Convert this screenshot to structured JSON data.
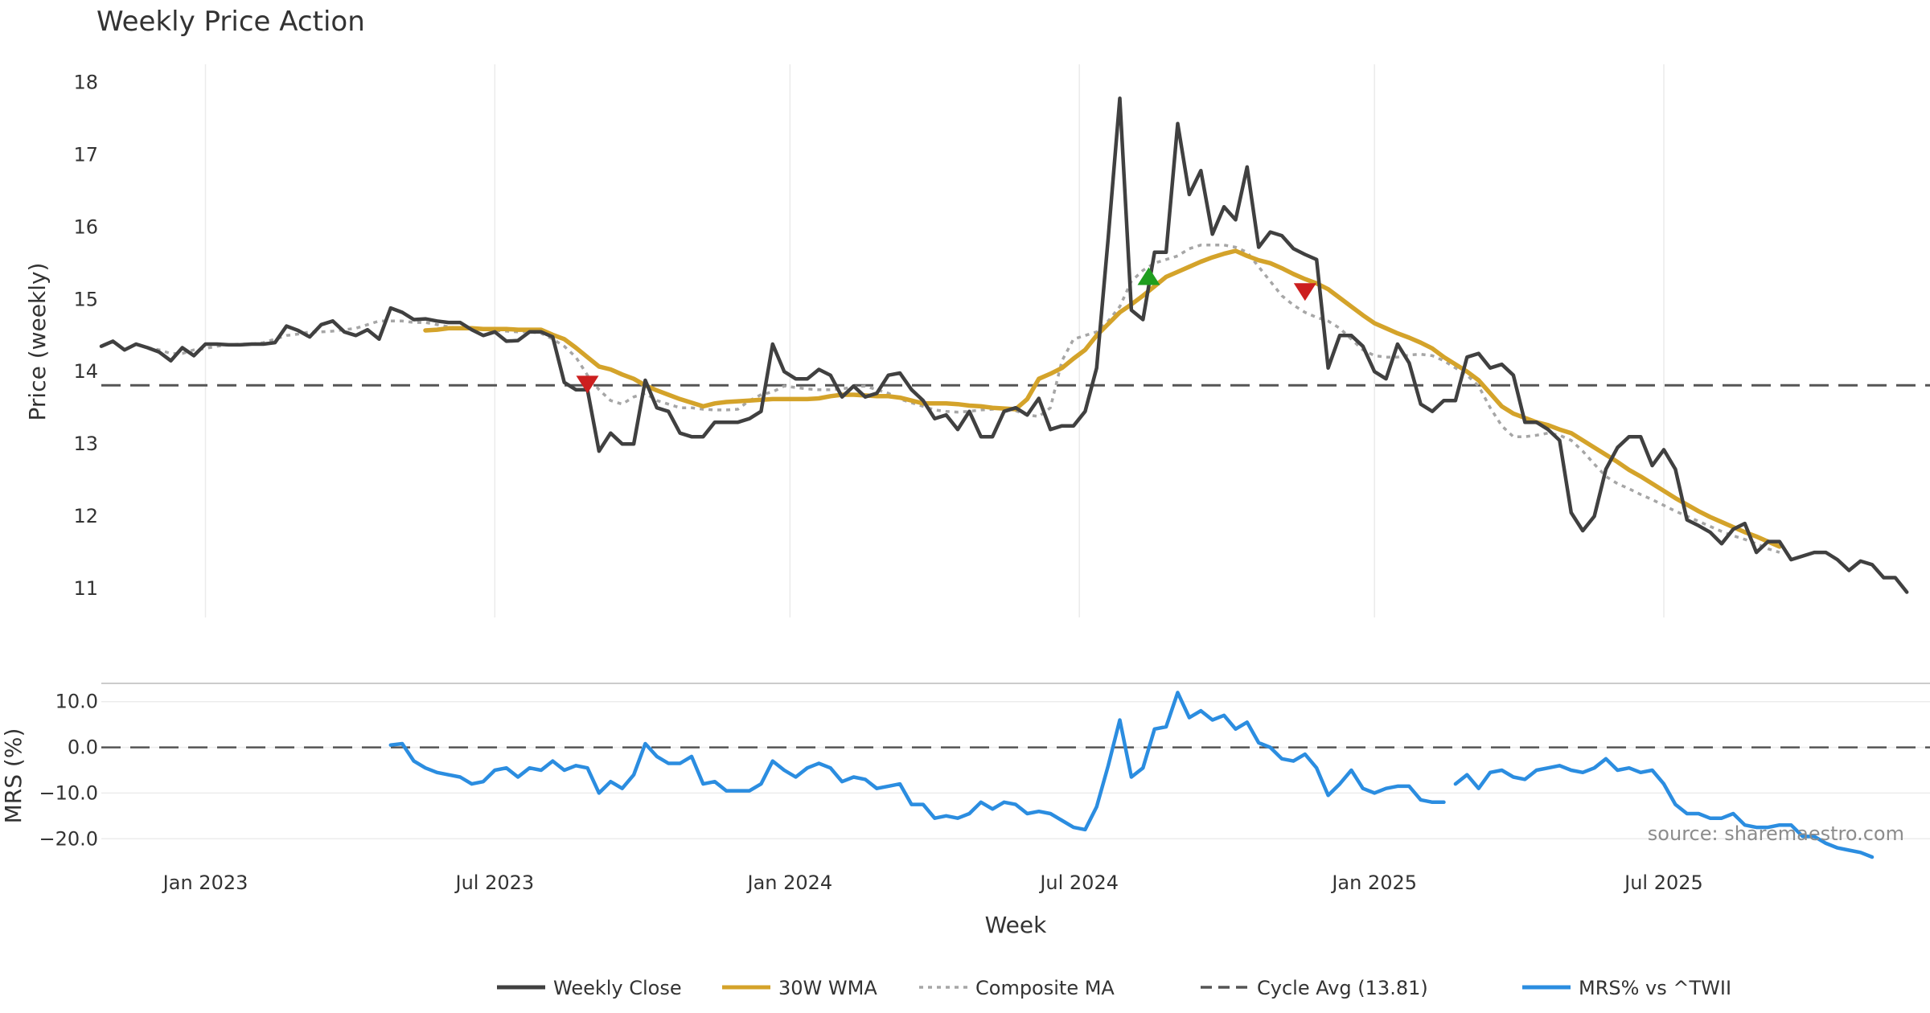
{
  "chart_data": [
    {
      "type": "line",
      "title": "Weekly Price Action",
      "ylabel": "Price (weekly)",
      "xlabel": "Week",
      "ylim": [
        10.6,
        18.25
      ],
      "xlim": [
        0,
        158
      ],
      "yticks": [
        11,
        12,
        13,
        14,
        15,
        16,
        17,
        18
      ],
      "yticklabels": [
        "11",
        "12",
        "13",
        "14",
        "15",
        "16",
        "17",
        "18"
      ],
      "grid": true,
      "x_dates": [
        "Jan 2023",
        "Jul 2023",
        "Jan 2024",
        "Jul 2024",
        "Jan 2025",
        "Jul 2025"
      ],
      "x_date_positions": [
        9,
        34,
        59.5,
        84.5,
        110,
        135
      ],
      "reference_line": {
        "label": "Cycle Avg (13.81)",
        "value": 13.81
      },
      "series": [
        {
          "name": "Weekly Close",
          "color": "#404040",
          "style": "solid",
          "x_start": 0,
          "values": [
            14.35,
            14.42,
            14.3,
            14.38,
            14.33,
            14.27,
            14.15,
            14.33,
            14.22,
            14.38,
            14.38,
            14.37,
            14.37,
            14.38,
            14.38,
            14.4,
            14.63,
            14.57,
            14.48,
            14.65,
            14.7,
            14.55,
            14.5,
            14.58,
            14.45,
            14.88,
            14.82,
            14.72,
            14.73,
            14.7,
            14.68,
            14.68,
            14.58,
            14.5,
            14.55,
            14.42,
            14.43,
            14.55,
            14.55,
            14.48,
            13.85,
            13.75,
            13.75,
            12.9,
            13.15,
            13.0,
            13.0,
            13.88,
            13.5,
            13.45,
            13.15,
            13.1,
            13.1,
            13.3,
            13.3,
            13.3,
            13.35,
            13.45,
            14.38,
            14.0,
            13.9,
            13.9,
            14.03,
            13.95,
            13.65,
            13.8,
            13.65,
            13.7,
            13.95,
            13.98,
            13.75,
            13.6,
            13.35,
            13.4,
            13.2,
            13.45,
            13.1,
            13.1,
            13.45,
            13.5,
            13.4,
            13.63,
            13.2,
            13.25,
            13.25,
            13.45,
            14.05,
            15.85,
            17.78,
            14.85,
            14.72,
            15.65,
            15.65,
            17.43,
            16.45,
            16.78,
            15.9,
            16.28,
            16.1,
            16.83,
            15.72,
            15.93,
            15.88,
            15.7,
            15.62,
            15.55,
            14.05,
            14.5,
            14.5,
            14.35,
            14.0,
            13.9,
            14.38,
            14.12,
            13.55,
            13.45,
            13.6,
            13.6,
            14.2,
            14.25,
            14.05,
            14.1,
            13.95,
            13.3,
            13.3,
            13.2,
            13.05,
            12.05,
            11.8,
            12.0,
            12.65,
            12.95,
            13.1,
            13.1,
            12.7,
            12.92,
            12.65,
            11.95,
            11.87,
            11.78,
            11.62,
            11.82,
            11.9,
            11.5,
            11.65,
            11.65,
            11.4,
            11.45,
            11.5,
            11.5,
            11.4,
            11.25,
            11.38,
            11.33,
            11.15,
            11.15,
            10.95
          ]
        },
        {
          "name": "30W WMA",
          "color": "#d4a32a",
          "style": "solid",
          "x_start": 28,
          "values": [
            14.57,
            14.58,
            14.6,
            14.6,
            14.6,
            14.59,
            14.59,
            14.59,
            14.58,
            14.58,
            14.58,
            14.51,
            14.45,
            14.33,
            14.2,
            14.07,
            14.03,
            13.96,
            13.9,
            13.81,
            13.74,
            13.68,
            13.62,
            13.57,
            13.52,
            13.56,
            13.58,
            13.59,
            13.6,
            13.61,
            13.62,
            13.62,
            13.62,
            13.62,
            13.63,
            13.66,
            13.68,
            13.68,
            13.67,
            13.66,
            13.66,
            13.64,
            13.6,
            13.56,
            13.56,
            13.56,
            13.55,
            13.53,
            13.52,
            13.5,
            13.49,
            13.48,
            13.62,
            13.9,
            13.97,
            14.05,
            14.18,
            14.3,
            14.5,
            14.66,
            14.82,
            14.93,
            15.05,
            15.18,
            15.31,
            15.38,
            15.45,
            15.52,
            15.58,
            15.63,
            15.67,
            15.6,
            15.54,
            15.5,
            15.43,
            15.35,
            15.28,
            15.22,
            15.14,
            15.02,
            14.9,
            14.78,
            14.67,
            14.6,
            14.53,
            14.47,
            14.4,
            14.32,
            14.2,
            14.1,
            14.0,
            13.88,
            13.7,
            13.52,
            13.42,
            13.36,
            13.3,
            13.26,
            13.2,
            13.15,
            13.05,
            12.95,
            12.85,
            12.75,
            12.64,
            12.55,
            12.45,
            12.35,
            12.25,
            12.16,
            12.07,
            11.99,
            11.92,
            11.85,
            11.78,
            11.72,
            11.65,
            11.58
          ]
        },
        {
          "name": "Composite MA",
          "color": "#a6a6a6",
          "style": "dotted",
          "x_start": 4,
          "values": [
            14.33,
            14.3,
            14.25,
            14.25,
            14.3,
            14.32,
            14.35,
            14.37,
            14.38,
            14.38,
            14.4,
            14.45,
            14.5,
            14.52,
            14.55,
            14.55,
            14.56,
            14.58,
            14.6,
            14.65,
            14.7,
            14.7,
            14.7,
            14.68,
            14.68,
            14.65,
            14.62,
            14.6,
            14.6,
            14.58,
            14.57,
            14.56,
            14.55,
            14.55,
            14.53,
            14.45,
            14.35,
            14.2,
            13.95,
            13.75,
            13.6,
            13.55,
            13.65,
            13.7,
            13.6,
            13.55,
            13.5,
            13.5,
            13.48,
            13.47,
            13.47,
            13.48,
            13.6,
            13.68,
            13.72,
            13.8,
            13.78,
            13.76,
            13.75,
            13.75,
            13.76,
            13.79,
            13.8,
            13.75,
            13.7,
            13.62,
            13.57,
            13.52,
            13.47,
            13.45,
            13.44,
            13.45,
            13.47,
            13.48,
            13.5,
            13.46,
            13.4,
            13.38,
            13.5,
            14.15,
            14.45,
            14.5,
            14.55,
            14.7,
            14.9,
            15.25,
            15.4,
            15.5,
            15.55,
            15.6,
            15.7,
            15.75,
            15.75,
            15.75,
            15.72,
            15.65,
            15.45,
            15.25,
            15.05,
            14.92,
            14.82,
            14.75,
            14.7,
            14.6,
            14.45,
            14.3,
            14.22,
            14.2,
            14.2,
            14.23,
            14.24,
            14.22,
            14.15,
            14.05,
            13.95,
            13.8,
            13.5,
            13.25,
            13.1,
            13.1,
            13.12,
            13.15,
            13.12,
            13.05,
            12.9,
            12.72,
            12.55,
            12.45,
            12.38,
            12.3,
            12.23,
            12.15,
            12.07,
            12.0,
            11.93,
            11.86,
            11.79,
            11.73,
            11.68,
            11.62,
            11.55,
            11.5
          ]
        }
      ],
      "markers": [
        {
          "type": "sell",
          "x": 42,
          "y": 13.82,
          "color": "#cc1f1f"
        },
        {
          "type": "buy",
          "x": 90.5,
          "y": 15.32,
          "color": "#1f9e1f"
        },
        {
          "type": "sell",
          "x": 104,
          "y": 15.1,
          "color": "#cc1f1f"
        }
      ],
      "source_note": "source: sharemaestro.com"
    },
    {
      "type": "line",
      "ylabel": "MRS (%)",
      "ylim": [
        -24,
        14
      ],
      "xlim": [
        0,
        158
      ],
      "yticks": [
        10,
        0,
        -10,
        -20
      ],
      "yticklabels": [
        "10.0",
        "0.0",
        "−10.0",
        "−20.0"
      ],
      "grid": true,
      "reference_line": {
        "value": 0
      },
      "series": [
        {
          "name": "MRS% vs ^TWII",
          "color": "#2b8de0",
          "style": "solid",
          "segments": [
            {
              "x_start": 25,
              "values": [
                0.5,
                0.8,
                -3,
                -4.5,
                -5.5,
                -6,
                -6.5,
                -8,
                -7.5,
                -5,
                -4.5,
                -6.5,
                -4.5,
                -5,
                -3,
                -5,
                -4,
                -4.5,
                -10,
                -7.5,
                -9,
                -6,
                0.8,
                -2,
                -3.5,
                -3.5,
                -2,
                -8,
                -7.5,
                -9.5,
                -9.5,
                -9.5,
                -8,
                -3,
                -5,
                -6.5,
                -4.5,
                -3.5,
                -4.5,
                -7.5,
                -6.5,
                -7,
                -9,
                -8.5,
                -8,
                -12.5,
                -12.5,
                -15.5,
                -15,
                -15.5,
                -14.5,
                -12,
                -13.5,
                -12,
                -12.5,
                -14.5,
                -14,
                -14.5,
                -16,
                -17.5,
                -18,
                -13,
                -4,
                6,
                -6.5,
                -4.5,
                4,
                4.5,
                12,
                6.5,
                8,
                6,
                7,
                4,
                5.5,
                1,
                0,
                -2.5,
                -3,
                -1.5,
                -4.5,
                -10.5,
                -8,
                -5,
                -9,
                -10,
                -9,
                -8.5,
                -8.5,
                -11.5,
                -12,
                -12
              ]
            },
            {
              "x_start": 117,
              "values": [
                -8,
                -6,
                -9,
                -5.5,
                -5,
                -6.5,
                -7,
                -5,
                -4.5,
                -4,
                -5,
                -5.5,
                -4.5,
                -2.5,
                -5,
                -4.5,
                -5.5,
                -5,
                -8,
                -12.5,
                -14.5,
                -14.5,
                -15.5,
                -15.5,
                -14.5,
                -17,
                -17.5,
                -17.5,
                -17,
                -17,
                -19.5,
                -19.5,
                -21,
                -22,
                -22.5,
                -23,
                -24
              ]
            }
          ]
        }
      ]
    }
  ],
  "legend": {
    "items": [
      {
        "label": "Weekly Close",
        "color": "#404040",
        "style": "solid"
      },
      {
        "label": "30W WMA",
        "color": "#d4a32a",
        "style": "solid"
      },
      {
        "label": "Composite MA",
        "color": "#a6a6a6",
        "style": "dotted"
      },
      {
        "label": "Cycle Avg (13.81)",
        "color": "#555555",
        "style": "dashed"
      },
      {
        "label": "MRS% vs ^TWII",
        "color": "#2b8de0",
        "style": "solid"
      }
    ]
  }
}
